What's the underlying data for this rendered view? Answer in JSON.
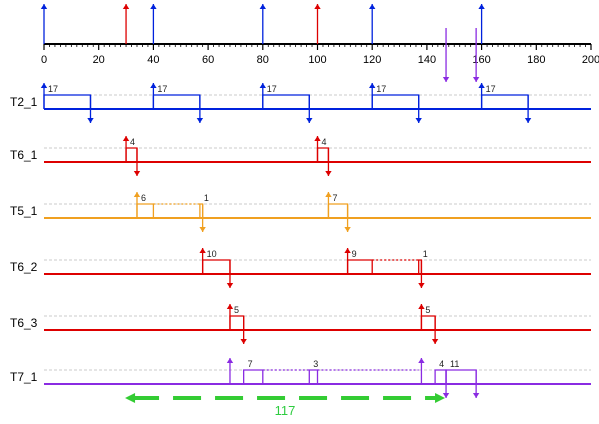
{
  "axis": {
    "min": 0,
    "max": 200,
    "major_step": 20,
    "minor_step": 2,
    "tick_labels": [
      "0",
      "20",
      "40",
      "60",
      "80",
      "100",
      "120",
      "140",
      "160",
      "180",
      "200"
    ]
  },
  "colors": {
    "blue": "#0022dd",
    "red": "#dd0000",
    "orange": "#f0a020",
    "purple": "#8a2be2",
    "green": "#33cc33",
    "guide": "#bbbbbb"
  },
  "top_markers": [
    {
      "t": 0,
      "color": "blue",
      "dir": "up"
    },
    {
      "t": 30,
      "color": "red",
      "dir": "up"
    },
    {
      "t": 40,
      "color": "blue",
      "dir": "up"
    },
    {
      "t": 80,
      "color": "blue",
      "dir": "up"
    },
    {
      "t": 100,
      "color": "red",
      "dir": "up"
    },
    {
      "t": 120,
      "color": "blue",
      "dir": "up"
    },
    {
      "t": 160,
      "color": "blue",
      "dir": "up"
    },
    {
      "t": 147,
      "color": "purple",
      "dir": "down"
    },
    {
      "t": 158,
      "color": "purple",
      "dir": "down"
    }
  ],
  "tracks": [
    {
      "name": "T2_1",
      "color": "blue",
      "segments": [
        {
          "start": 0,
          "end": 17,
          "label": "17",
          "dotted": false
        },
        {
          "start": 40,
          "end": 57,
          "label": "17",
          "dotted": false
        },
        {
          "start": 80,
          "end": 97,
          "label": "17",
          "dotted": false
        },
        {
          "start": 120,
          "end": 137,
          "label": "17",
          "dotted": false
        },
        {
          "start": 160,
          "end": 177,
          "label": "17",
          "dotted": false
        }
      ],
      "up_arrows": [
        0,
        40,
        80,
        120,
        160
      ],
      "down_arrows": [
        17,
        57,
        97,
        137,
        177
      ]
    },
    {
      "name": "T6_1",
      "color": "red",
      "segments": [
        {
          "start": 30,
          "end": 34,
          "label": "4",
          "dotted": false
        },
        {
          "start": 100,
          "end": 104,
          "label": "4",
          "dotted": false
        }
      ],
      "up_arrows": [
        30,
        100
      ],
      "down_arrows": [
        34,
        104
      ]
    },
    {
      "name": "T5_1",
      "color": "orange",
      "segments": [
        {
          "start": 34,
          "end": 40,
          "label": "6",
          "dotted": false
        },
        {
          "start": 40,
          "end": 57,
          "label": "",
          "dotted": true
        },
        {
          "start": 57,
          "end": 58,
          "label": "1",
          "dotted": false
        },
        {
          "start": 104,
          "end": 111,
          "label": "7",
          "dotted": false
        }
      ],
      "up_arrows": [
        34,
        104
      ],
      "down_arrows": [
        58,
        111
      ]
    },
    {
      "name": "T6_2",
      "color": "red",
      "segments": [
        {
          "start": 58,
          "end": 68,
          "label": "10",
          "dotted": false
        },
        {
          "start": 111,
          "end": 120,
          "label": "9",
          "dotted": false
        },
        {
          "start": 120,
          "end": 137,
          "label": "",
          "dotted": true
        },
        {
          "start": 137,
          "end": 138,
          "label": "1",
          "dotted": false
        }
      ],
      "up_arrows": [
        58,
        111
      ],
      "down_arrows": [
        68,
        138
      ]
    },
    {
      "name": "T6_3",
      "color": "red",
      "segments": [
        {
          "start": 68,
          "end": 73,
          "label": "5",
          "dotted": false
        },
        {
          "start": 138,
          "end": 143,
          "label": "5",
          "dotted": false
        }
      ],
      "up_arrows": [
        68,
        138
      ],
      "down_arrows": [
        73,
        143
      ]
    },
    {
      "name": "T7_1",
      "color": "purple",
      "segments": [
        {
          "start": 73,
          "end": 80,
          "label": "7",
          "dotted": false
        },
        {
          "start": 80,
          "end": 97,
          "label": "",
          "dotted": true
        },
        {
          "start": 97,
          "end": 100,
          "label": "3",
          "dotted": false
        },
        {
          "start": 100,
          "end": 137,
          "label": "",
          "dotted": true
        },
        {
          "start": 143,
          "end": 147,
          "label": "4",
          "dotted": false
        },
        {
          "start": 147,
          "end": 158,
          "label": "11",
          "dotted": false
        }
      ],
      "up_arrows": [
        68,
        138
      ],
      "down_arrows": [
        147,
        158
      ]
    }
  ],
  "span": {
    "start": 30,
    "end": 147,
    "label": "117",
    "color": "green"
  }
}
